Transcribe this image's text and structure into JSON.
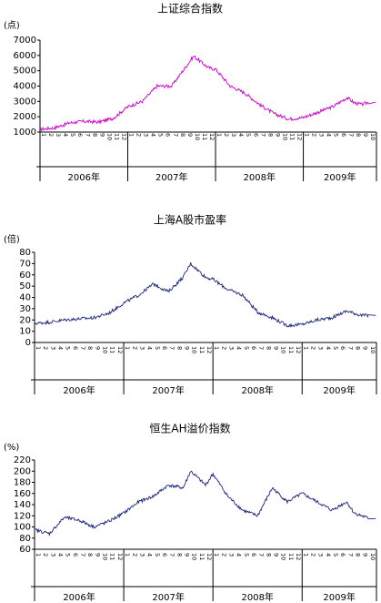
{
  "chart_data": [
    {
      "type": "line",
      "title": "上证综合指数",
      "unit_label": "(点)",
      "ylim": [
        1000,
        7000
      ],
      "yticks": [
        1000,
        2000,
        3000,
        4000,
        5000,
        6000,
        7000
      ],
      "x_year_labels": [
        "2006年",
        "2007年",
        "2008年",
        "2009年"
      ],
      "x_month_ticks": [
        "1",
        "2",
        "3",
        "4",
        "5",
        "6",
        "7",
        "8",
        "9",
        "10",
        "11",
        "12"
      ],
      "line_color": "#cc00cc",
      "grid": false,
      "series": [
        {
          "x": [
            "2006-01",
            "2006-03",
            "2006-05",
            "2006-07",
            "2006-09",
            "2006-11",
            "2007-01",
            "2007-03",
            "2007-05",
            "2007-07",
            "2007-09",
            "2007-10",
            "2007-12",
            "2008-01",
            "2008-03",
            "2008-05",
            "2008-07",
            "2008-09",
            "2008-11",
            "2009-01",
            "2009-03",
            "2009-05",
            "2009-07",
            "2009-08",
            "2009-09",
            "2009-10"
          ],
          "values": [
            1180,
            1280,
            1600,
            1700,
            1650,
            1900,
            2650,
            3000,
            4000,
            4000,
            5300,
            5950,
            5200,
            5100,
            4000,
            3550,
            2800,
            2200,
            1850,
            1950,
            2300,
            2650,
            3250,
            2900,
            2800,
            2950
          ]
        }
      ]
    },
    {
      "type": "line",
      "title": "上海A股市盈率",
      "unit_label": "(倍)",
      "ylim": [
        0,
        80
      ],
      "yticks": [
        0,
        10,
        20,
        30,
        40,
        50,
        60,
        70,
        80
      ],
      "x_year_labels": [
        "2006年",
        "2007年",
        "2008年",
        "2009年"
      ],
      "x_month_ticks": [
        "1",
        "2",
        "3",
        "4",
        "5",
        "6",
        "7",
        "8",
        "9",
        "10",
        "11",
        "12"
      ],
      "line_color": "#1a237e",
      "grid": false,
      "series": [
        {
          "x": [
            "2006-01",
            "2006-03",
            "2006-05",
            "2006-07",
            "2006-09",
            "2006-11",
            "2007-01",
            "2007-03",
            "2007-05",
            "2007-07",
            "2007-09",
            "2007-10",
            "2007-12",
            "2008-01",
            "2008-03",
            "2008-05",
            "2008-07",
            "2008-09",
            "2008-11",
            "2009-01",
            "2009-03",
            "2009-05",
            "2009-07",
            "2009-08",
            "2009-09",
            "2009-10"
          ],
          "values": [
            17,
            18,
            20,
            21,
            22,
            26,
            35,
            42,
            52,
            45,
            58,
            70,
            58,
            56,
            47,
            42,
            27,
            22,
            15,
            16,
            20,
            22,
            28,
            26,
            24,
            24
          ]
        }
      ]
    },
    {
      "type": "line",
      "title": "恒生AH溢价指数",
      "unit_label": "(%)",
      "ylim": [
        60,
        220
      ],
      "yticks": [
        60,
        80,
        100,
        120,
        140,
        160,
        180,
        200,
        220
      ],
      "x_year_labels": [
        "2006年",
        "2007年",
        "2008年",
        "2009年"
      ],
      "x_month_ticks": [
        "1",
        "2",
        "3",
        "4",
        "5",
        "6",
        "7",
        "8",
        "9",
        "10",
        "11",
        "12"
      ],
      "line_color": "#1a237e",
      "grid": false,
      "series": [
        {
          "x": [
            "2006-01",
            "2006-03",
            "2006-05",
            "2006-07",
            "2006-09",
            "2006-11",
            "2007-01",
            "2007-03",
            "2007-05",
            "2007-07",
            "2007-09",
            "2007-10",
            "2007-12",
            "2008-01",
            "2008-03",
            "2008-05",
            "2008-07",
            "2008-09",
            "2008-11",
            "2009-01",
            "2009-03",
            "2009-05",
            "2009-07",
            "2009-08",
            "2009-09",
            "2009-10"
          ],
          "values": [
            95,
            88,
            117,
            112,
            100,
            110,
            125,
            145,
            155,
            175,
            170,
            200,
            175,
            195,
            155,
            130,
            120,
            170,
            145,
            160,
            145,
            130,
            145,
            125,
            120,
            115
          ]
        }
      ]
    }
  ]
}
